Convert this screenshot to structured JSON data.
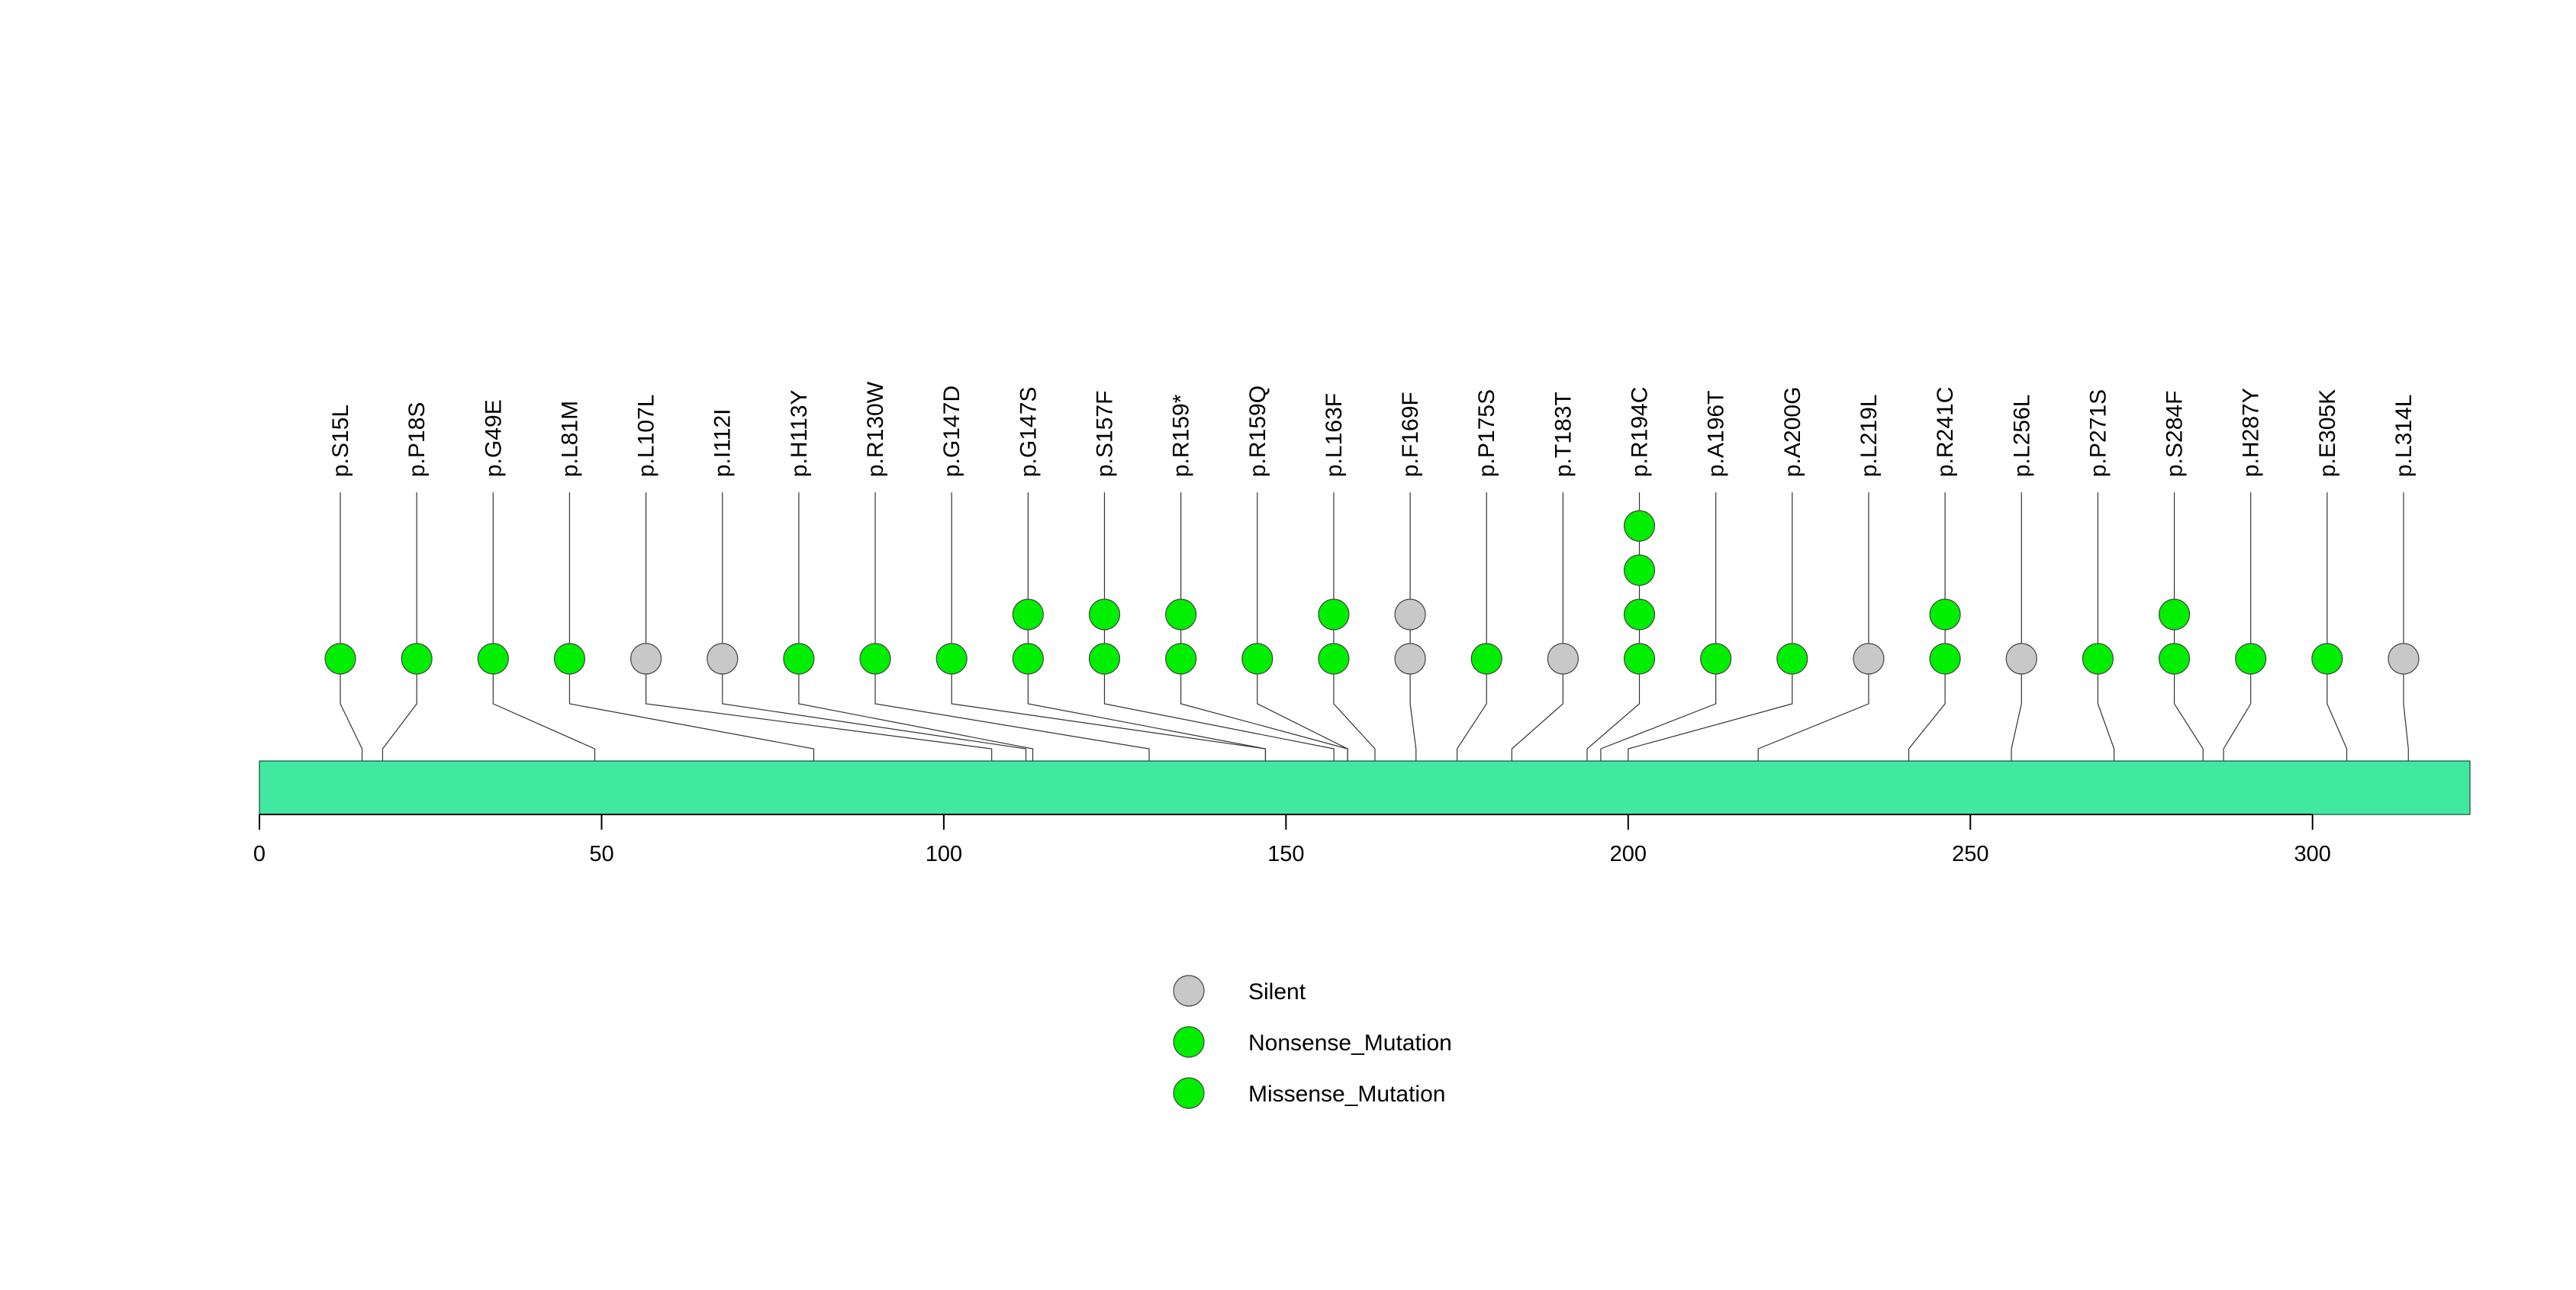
{
  "chart_data": {
    "type": "lollipop",
    "title": "",
    "xlabel": "",
    "ylabel": "",
    "xlim": [
      0,
      323
    ],
    "x_ticks": [
      0,
      50,
      100,
      150,
      200,
      250,
      300
    ],
    "protein_bar_color": "#40e8a0",
    "colors": {
      "Silent": "#c8c8c8",
      "Nonsense_Mutation": "#00ee00",
      "Missense_Mutation": "#00ee00"
    },
    "legend": [
      {
        "label": "Silent",
        "color": "#c8c8c8"
      },
      {
        "label": "Nonsense_Mutation",
        "color": "#00ee00"
      },
      {
        "label": "Missense_Mutation",
        "color": "#00ee00"
      }
    ],
    "mutations": [
      {
        "label": "p.S15L",
        "position": 15,
        "count": 1,
        "type": "Missense_Mutation"
      },
      {
        "label": "p.P18S",
        "position": 18,
        "count": 1,
        "type": "Missense_Mutation"
      },
      {
        "label": "p.G49E",
        "position": 49,
        "count": 1,
        "type": "Missense_Mutation"
      },
      {
        "label": "p.L81M",
        "position": 81,
        "count": 1,
        "type": "Missense_Mutation"
      },
      {
        "label": "p.L107L",
        "position": 107,
        "count": 1,
        "type": "Silent"
      },
      {
        "label": "p.I112I",
        "position": 112,
        "count": 1,
        "type": "Silent"
      },
      {
        "label": "p.H113Y",
        "position": 113,
        "count": 1,
        "type": "Missense_Mutation"
      },
      {
        "label": "p.R130W",
        "position": 130,
        "count": 1,
        "type": "Missense_Mutation"
      },
      {
        "label": "p.G147D",
        "position": 147,
        "count": 1,
        "type": "Missense_Mutation"
      },
      {
        "label": "p.G147S",
        "position": 147,
        "count": 2,
        "type": "Missense_Mutation"
      },
      {
        "label": "p.S157F",
        "position": 157,
        "count": 2,
        "type": "Missense_Mutation"
      },
      {
        "label": "p.R159*",
        "position": 159,
        "count": 2,
        "type": "Nonsense_Mutation"
      },
      {
        "label": "p.R159Q",
        "position": 159,
        "count": 1,
        "type": "Missense_Mutation"
      },
      {
        "label": "p.L163F",
        "position": 163,
        "count": 2,
        "type": "Missense_Mutation"
      },
      {
        "label": "p.F169F",
        "position": 169,
        "count": 2,
        "type": "Silent"
      },
      {
        "label": "p.P175S",
        "position": 175,
        "count": 1,
        "type": "Missense_Mutation"
      },
      {
        "label": "p.T183T",
        "position": 183,
        "count": 1,
        "type": "Silent"
      },
      {
        "label": "p.R194C",
        "position": 194,
        "count": 4,
        "type": "Missense_Mutation"
      },
      {
        "label": "p.A196T",
        "position": 196,
        "count": 1,
        "type": "Missense_Mutation"
      },
      {
        "label": "p.A200G",
        "position": 200,
        "count": 1,
        "type": "Missense_Mutation"
      },
      {
        "label": "p.L219L",
        "position": 219,
        "count": 1,
        "type": "Silent"
      },
      {
        "label": "p.R241C",
        "position": 241,
        "count": 2,
        "type": "Missense_Mutation"
      },
      {
        "label": "p.L256L",
        "position": 256,
        "count": 1,
        "type": "Silent"
      },
      {
        "label": "p.P271S",
        "position": 271,
        "count": 1,
        "type": "Missense_Mutation"
      },
      {
        "label": "p.S284F",
        "position": 284,
        "count": 2,
        "type": "Missense_Mutation"
      },
      {
        "label": "p.H287Y",
        "position": 287,
        "count": 1,
        "type": "Missense_Mutation"
      },
      {
        "label": "p.E305K",
        "position": 305,
        "count": 1,
        "type": "Missense_Mutation"
      },
      {
        "label": "p.L314L",
        "position": 314,
        "count": 1,
        "type": "Silent"
      }
    ]
  }
}
